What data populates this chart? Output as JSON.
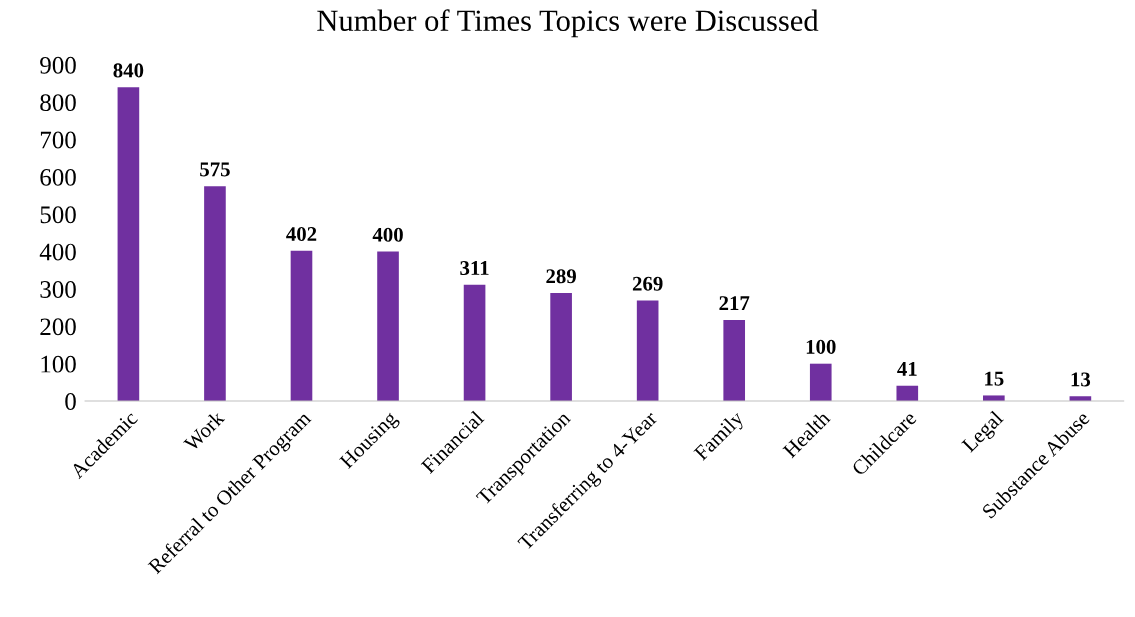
{
  "chart_data": {
    "type": "bar",
    "title": "Number of Times Topics were Discussed",
    "categories": [
      "Academic",
      "Work",
      "Referral to Other Program",
      "Housing",
      "Financial",
      "Transportation",
      "Transferring to 4-Year",
      "Family",
      "Health",
      "Childcare",
      "Legal",
      "Substance Abuse"
    ],
    "values": [
      840,
      575,
      402,
      400,
      311,
      289,
      269,
      217,
      100,
      41,
      15,
      13
    ],
    "color": "#7030a0",
    "ylim": [
      0,
      900
    ],
    "yticks": [
      0,
      100,
      200,
      300,
      400,
      500,
      600,
      700,
      800,
      900
    ],
    "grid": false,
    "data_labels": true
  }
}
